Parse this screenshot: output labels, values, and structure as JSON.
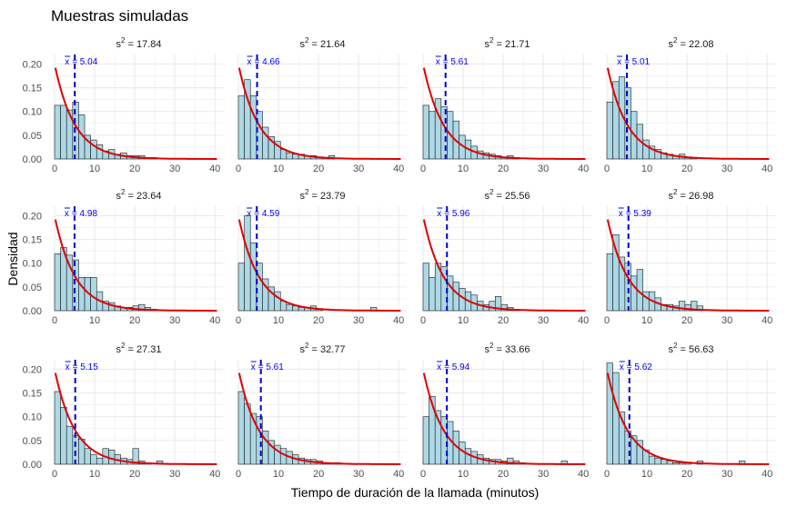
{
  "chart_data": {
    "type": "histogram-facets",
    "title": "Muestras simuladas",
    "xlabel": "Tiempo de duración de la llamada (minutos)",
    "ylabel": "Densidad",
    "xlim": [
      0,
      42
    ],
    "ylim": [
      0,
      0.22
    ],
    "x_ticks": [
      0,
      10,
      20,
      30,
      40
    ],
    "y_ticks": [
      0.0,
      0.05,
      0.1,
      0.15,
      0.2
    ],
    "y_tick_labels": [
      "0.00",
      "0.05",
      "0.10",
      "0.15",
      "0.20"
    ],
    "bin_width": 1.5,
    "colors": {
      "bar_fill": "#add8e6",
      "bar_stroke": "#1a1a1a",
      "density_curve": "#e00000",
      "mean_line": "#0000cc",
      "grid": "#ebebeb"
    },
    "density_curve": {
      "type": "exponential",
      "rate": 0.2
    },
    "panels": [
      {
        "variance_label": "= 17.84",
        "mean_label": "= 5.04",
        "mean": 5.04,
        "densities": [
          0.113,
          0.113,
          0.103,
          0.12,
          0.093,
          0.05,
          0.04,
          0.03,
          0.017,
          0.02,
          0.01,
          0.013,
          0.007,
          0.007,
          0.007,
          0.003,
          0.003,
          0,
          0,
          0,
          0,
          0,
          0,
          0,
          0,
          0,
          0,
          0
        ]
      },
      {
        "variance_label": "= 21.64",
        "mean_label": "= 4.66",
        "mean": 4.66,
        "densities": [
          0.133,
          0.167,
          0.133,
          0.1,
          0.067,
          0.047,
          0.037,
          0.02,
          0.013,
          0.01,
          0.01,
          0.007,
          0.007,
          0.003,
          0.003,
          0.007,
          0,
          0,
          0,
          0,
          0,
          0,
          0,
          0,
          0,
          0,
          0,
          0
        ]
      },
      {
        "variance_label": "= 21.71",
        "mean_label": "= 5.61",
        "mean": 5.61,
        "densities": [
          0.113,
          0.1,
          0.127,
          0.11,
          0.1,
          0.08,
          0.05,
          0.04,
          0.027,
          0.017,
          0.013,
          0.01,
          0.007,
          0.003,
          0.007,
          0.003,
          0,
          0,
          0,
          0,
          0,
          0,
          0,
          0,
          0,
          0,
          0,
          0
        ]
      },
      {
        "variance_label": "= 22.08",
        "mean_label": "= 5.01",
        "mean": 5.01,
        "densities": [
          0.12,
          0.163,
          0.173,
          0.15,
          0.1,
          0.073,
          0.04,
          0.027,
          0.02,
          0.013,
          0.01,
          0.007,
          0.01,
          0.003,
          0.003,
          0,
          0,
          0,
          0,
          0,
          0,
          0,
          0,
          0,
          0,
          0,
          0,
          0
        ]
      },
      {
        "variance_label": "= 23.64",
        "mean_label": "= 4.98",
        "mean": 4.98,
        "densities": [
          0.12,
          0.133,
          0.117,
          0.107,
          0.07,
          0.07,
          0.07,
          0.04,
          0.02,
          0.017,
          0.01,
          0.007,
          0.007,
          0.01,
          0.013,
          0.007,
          0.003,
          0,
          0,
          0,
          0,
          0,
          0,
          0,
          0,
          0,
          0,
          0
        ]
      },
      {
        "variance_label": "= 23.79",
        "mean_label": "= 4.59",
        "mean": 4.59,
        "densities": [
          0.1,
          0.2,
          0.143,
          0.1,
          0.067,
          0.05,
          0.04,
          0.02,
          0.013,
          0.01,
          0.007,
          0.007,
          0.01,
          0.003,
          0,
          0,
          0,
          0,
          0,
          0,
          0,
          0,
          0.007,
          0,
          0,
          0,
          0,
          0
        ]
      },
      {
        "variance_label": "= 25.56",
        "mean_label": "= 5.96",
        "mean": 5.96,
        "densities": [
          0.1,
          0.07,
          0.1,
          0.093,
          0.073,
          0.06,
          0.047,
          0.04,
          0.033,
          0.02,
          0.013,
          0.02,
          0.03,
          0.013,
          0.007,
          0.003,
          0,
          0,
          0,
          0,
          0,
          0,
          0,
          0,
          0,
          0,
          0,
          0
        ]
      },
      {
        "variance_label": "= 26.98",
        "mean_label": "= 5.39",
        "mean": 5.39,
        "densities": [
          0.12,
          0.16,
          0.113,
          0.1,
          0.073,
          0.087,
          0.04,
          0.04,
          0.027,
          0.013,
          0.013,
          0.01,
          0.02,
          0.013,
          0.02,
          0.01,
          0,
          0,
          0,
          0,
          0,
          0,
          0,
          0,
          0,
          0,
          0,
          0
        ]
      },
      {
        "variance_label": "= 27.31",
        "mean_label": "= 5.15",
        "mean": 5.15,
        "densities": [
          0.153,
          0.12,
          0.08,
          0.06,
          0.053,
          0.033,
          0.02,
          0.013,
          0.033,
          0.03,
          0.02,
          0.013,
          0.01,
          0.033,
          0.007,
          0.003,
          0,
          0.007,
          0,
          0,
          0,
          0,
          0,
          0,
          0,
          0,
          0,
          0
        ]
      },
      {
        "variance_label": "= 32.77",
        "mean_label": "= 5.61",
        "mean": 5.61,
        "densities": [
          0.153,
          0.127,
          0.107,
          0.1,
          0.07,
          0.05,
          0.04,
          0.033,
          0.027,
          0.02,
          0.013,
          0.01,
          0.01,
          0.007,
          0.003,
          0.003,
          0.003,
          0,
          0,
          0,
          0,
          0,
          0,
          0,
          0,
          0,
          0,
          0
        ]
      },
      {
        "variance_label": "= 33.66",
        "mean_label": "= 5.94",
        "mean": 5.94,
        "densities": [
          0.1,
          0.143,
          0.113,
          0.1,
          0.09,
          0.07,
          0.047,
          0.033,
          0.027,
          0.02,
          0.013,
          0.01,
          0.01,
          0.007,
          0.013,
          0.007,
          0.003,
          0,
          0,
          0,
          0,
          0,
          0,
          0.007,
          0,
          0,
          0,
          0
        ]
      },
      {
        "variance_label": "= 56.63",
        "mean_label": "= 5.62",
        "mean": 5.62,
        "densities": [
          0.213,
          0.193,
          0.11,
          0.07,
          0.06,
          0.05,
          0.03,
          0.017,
          0.013,
          0.01,
          0.007,
          0.003,
          0.003,
          0.003,
          0,
          0.007,
          0,
          0,
          0,
          0,
          0,
          0,
          0.007,
          0,
          0,
          0,
          0,
          0
        ]
      }
    ]
  }
}
